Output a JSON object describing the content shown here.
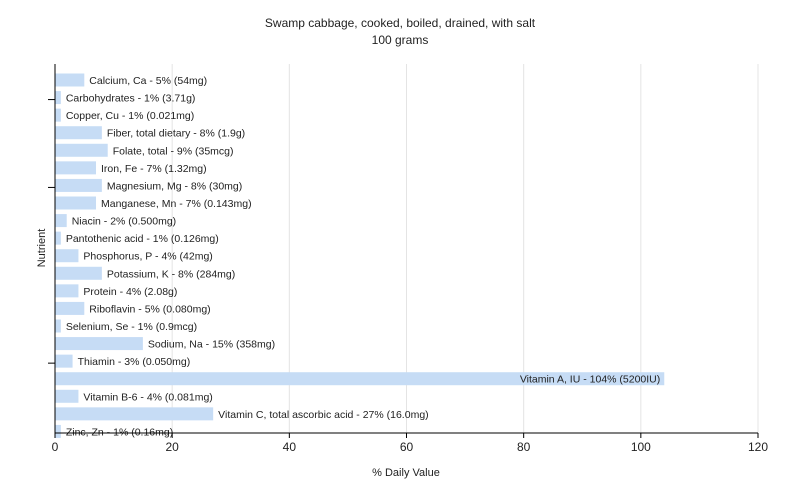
{
  "chart_data": {
    "type": "bar",
    "orientation": "horizontal",
    "title": "Swamp cabbage, cooked, boiled, drained, with salt",
    "subtitle": "100 grams",
    "xlabel": "% Daily Value",
    "ylabel": "Nutrient",
    "xlim": [
      0,
      120
    ],
    "xticks": [
      0,
      20,
      40,
      60,
      80,
      100,
      120
    ],
    "grid": true,
    "bar_color": "#c6dcf5",
    "categories": [
      "Calcium, Ca",
      "Carbohydrates",
      "Copper, Cu",
      "Fiber, total dietary",
      "Folate, total",
      "Iron, Fe",
      "Magnesium, Mg",
      "Manganese, Mn",
      "Niacin",
      "Pantothenic acid",
      "Phosphorus, P",
      "Potassium, K",
      "Protein",
      "Riboflavin",
      "Selenium, Se",
      "Sodium, Na",
      "Thiamin",
      "Vitamin A, IU",
      "Vitamin B-6",
      "Vitamin C, total ascorbic acid",
      "Zinc, Zn"
    ],
    "values": [
      5,
      1,
      1,
      8,
      9,
      7,
      8,
      7,
      2,
      1,
      4,
      8,
      4,
      5,
      1,
      15,
      3,
      104,
      4,
      27,
      1
    ],
    "labels": [
      "Calcium, Ca - 5% (54mg)",
      "Carbohydrates - 1% (3.71g)",
      "Copper, Cu - 1% (0.021mg)",
      "Fiber, total dietary - 8% (1.9g)",
      "Folate, total - 9% (35mcg)",
      "Iron, Fe - 7% (1.32mg)",
      "Magnesium, Mg - 8% (30mg)",
      "Manganese, Mn - 7% (0.143mg)",
      "Niacin - 2% (0.500mg)",
      "Pantothenic acid - 1% (0.126mg)",
      "Phosphorus, P - 4% (42mg)",
      "Potassium, K - 8% (284mg)",
      "Protein - 4% (2.08g)",
      "Riboflavin - 5% (0.080mg)",
      "Selenium, Se - 1% (0.9mcg)",
      "Sodium, Na - 15% (358mg)",
      "Thiamin - 3% (0.050mg)",
      "Vitamin A, IU - 104% (5200IU)",
      "Vitamin B-6 - 4% (0.081mg)",
      "Vitamin C, total ascorbic acid - 27% (16.0mg)",
      "Zinc, Zn - 1% (0.16mg)"
    ]
  }
}
